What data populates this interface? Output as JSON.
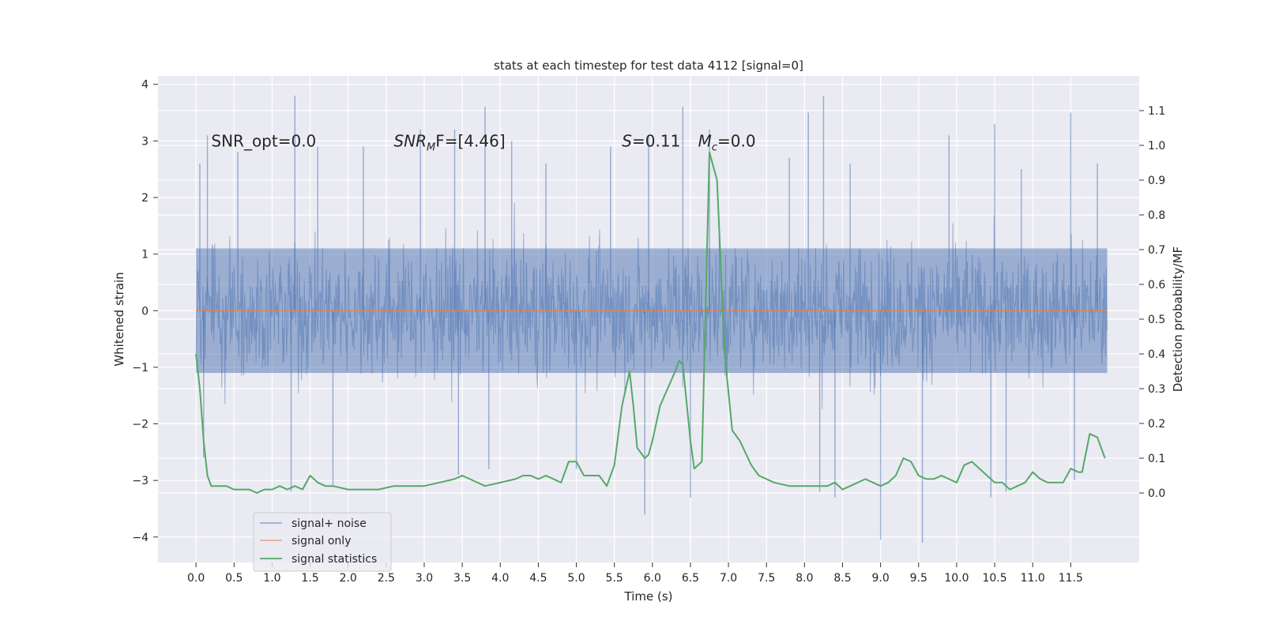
{
  "chart_data": {
    "type": "line",
    "title": "stats at each timestep for test data 4112 [signal=0]",
    "xlabel": "Time (s)",
    "ylabel": "Whitened strain",
    "ylabel_right": "Detection probability/MF",
    "xlim": [
      -0.5,
      12.4
    ],
    "ylim": [
      -4.45,
      4.15
    ],
    "ylim_right": [
      -0.2,
      1.2
    ],
    "x_ticks": [
      0.0,
      0.5,
      1.0,
      1.5,
      2.0,
      2.5,
      3.0,
      3.5,
      4.0,
      4.5,
      5.0,
      5.5,
      6.0,
      6.5,
      7.0,
      7.5,
      8.0,
      8.5,
      9.0,
      9.5,
      10.0,
      10.5,
      11.0,
      11.5
    ],
    "x_tick_labels": [
      "0.0",
      "0.5",
      "1.0",
      "1.5",
      "2.0",
      "2.5",
      "3.0",
      "3.5",
      "4.0",
      "4.5",
      "5.0",
      "5.5",
      "6.0",
      "6.5",
      "7.0",
      "7.5",
      "8.0",
      "8.5",
      "9.0",
      "9.5",
      "10.0",
      "10.5",
      "11.0",
      "11.5"
    ],
    "y_ticks": [
      -4,
      -3,
      -2,
      -1,
      0,
      1,
      2,
      3,
      4
    ],
    "y_tick_labels": [
      "−4",
      "−3",
      "−2",
      "−1",
      "0",
      "1",
      "2",
      "3",
      "4"
    ],
    "y_right_ticks": [
      0.0,
      0.1,
      0.2,
      0.3,
      0.4,
      0.5,
      0.6,
      0.7,
      0.8,
      0.9,
      1.0,
      1.1
    ],
    "y_right_tick_labels": [
      "0.0",
      "0.1",
      "0.2",
      "0.3",
      "0.4",
      "0.5",
      "0.6",
      "0.7",
      "0.8",
      "0.9",
      "1.0",
      "1.1"
    ],
    "grid": true,
    "legend_position": "lower-left",
    "annotations": [
      {
        "text": "SNR_opt=0.0",
        "x": 0.2,
        "y": 3.0
      },
      {
        "text": "SNR",
        "sub": "M",
        "tail": "F=[4.46]",
        "x": 2.6,
        "y": 3.0,
        "italic_main": true
      },
      {
        "text": "S",
        "tail": "=0.11",
        "x": 5.6,
        "y": 3.0,
        "italic_main": true
      },
      {
        "text": "M",
        "sub": "c",
        "tail": "=0.0",
        "x": 6.6,
        "y": 3.0,
        "italic_main": true
      }
    ],
    "series": [
      {
        "name": "signal+ noise",
        "color": "#4c72b0",
        "opacity": 0.5,
        "x_range": [
          0.0,
          11.98
        ],
        "envelope_core": [
          -1.1,
          1.1
        ],
        "spikes_up": [
          {
            "x": 0.05,
            "y": 2.6
          },
          {
            "x": 0.15,
            "y": 3.1
          },
          {
            "x": 0.55,
            "y": 2.8
          },
          {
            "x": 1.3,
            "y": 3.8
          },
          {
            "x": 1.6,
            "y": 2.9
          },
          {
            "x": 2.2,
            "y": 2.9
          },
          {
            "x": 2.95,
            "y": 3.2
          },
          {
            "x": 3.4,
            "y": 3.2
          },
          {
            "x": 3.8,
            "y": 3.6
          },
          {
            "x": 4.15,
            "y": 3.0
          },
          {
            "x": 4.6,
            "y": 2.6
          },
          {
            "x": 5.45,
            "y": 2.9
          },
          {
            "x": 5.95,
            "y": 3.1
          },
          {
            "x": 6.4,
            "y": 3.6
          },
          {
            "x": 6.75,
            "y": 3.2
          },
          {
            "x": 7.8,
            "y": 2.7
          },
          {
            "x": 8.05,
            "y": 3.5
          },
          {
            "x": 8.25,
            "y": 3.8
          },
          {
            "x": 8.6,
            "y": 2.6
          },
          {
            "x": 9.9,
            "y": 3.1
          },
          {
            "x": 10.5,
            "y": 3.3
          },
          {
            "x": 10.85,
            "y": 2.5
          },
          {
            "x": 11.5,
            "y": 3.5
          },
          {
            "x": 11.85,
            "y": 2.6
          }
        ],
        "spikes_down": [
          {
            "x": 0.1,
            "y": -2.6
          },
          {
            "x": 1.25,
            "y": -3.2
          },
          {
            "x": 1.8,
            "y": -3.1
          },
          {
            "x": 3.45,
            "y": -2.9
          },
          {
            "x": 3.85,
            "y": -2.8
          },
          {
            "x": 5.0,
            "y": -2.8
          },
          {
            "x": 5.9,
            "y": -3.6
          },
          {
            "x": 6.5,
            "y": -3.3
          },
          {
            "x": 8.2,
            "y": -3.2
          },
          {
            "x": 8.4,
            "y": -3.3
          },
          {
            "x": 9.0,
            "y": -4.05
          },
          {
            "x": 9.55,
            "y": -4.1
          },
          {
            "x": 10.45,
            "y": -3.3
          },
          {
            "x": 10.65,
            "y": -3.2
          },
          {
            "x": 11.55,
            "y": -3.0
          }
        ]
      },
      {
        "name": "signal only",
        "color": "#dd8452",
        "x": [
          0.0,
          11.98
        ],
        "y": [
          0.0,
          0.0
        ]
      },
      {
        "name": "signal statistics",
        "color": "#55a868",
        "axis": "right",
        "x": [
          0.0,
          0.05,
          0.1,
          0.15,
          0.2,
          0.3,
          0.4,
          0.5,
          0.6,
          0.7,
          0.8,
          0.9,
          1.0,
          1.1,
          1.2,
          1.3,
          1.4,
          1.5,
          1.6,
          1.7,
          1.8,
          2.0,
          2.2,
          2.4,
          2.6,
          2.8,
          3.0,
          3.2,
          3.4,
          3.5,
          3.6,
          3.8,
          4.0,
          4.2,
          4.3,
          4.4,
          4.5,
          4.6,
          4.8,
          4.9,
          5.0,
          5.1,
          5.2,
          5.3,
          5.4,
          5.5,
          5.6,
          5.7,
          5.75,
          5.8,
          5.9,
          5.95,
          6.0,
          6.1,
          6.2,
          6.3,
          6.35,
          6.4,
          6.5,
          6.55,
          6.65,
          6.75,
          6.85,
          6.95,
          7.05,
          7.15,
          7.3,
          7.4,
          7.6,
          7.8,
          8.0,
          8.2,
          8.3,
          8.4,
          8.5,
          8.6,
          8.7,
          8.8,
          8.9,
          9.0,
          9.1,
          9.2,
          9.3,
          9.4,
          9.5,
          9.6,
          9.7,
          9.8,
          9.9,
          10.0,
          10.1,
          10.2,
          10.3,
          10.4,
          10.5,
          10.6,
          10.7,
          10.8,
          10.9,
          11.0,
          11.1,
          11.2,
          11.3,
          11.4,
          11.5,
          11.6,
          11.65,
          11.75,
          11.85,
          11.95
        ],
        "y": [
          0.4,
          0.3,
          0.15,
          0.05,
          0.02,
          0.02,
          0.02,
          0.01,
          0.01,
          0.01,
          0.0,
          0.01,
          0.01,
          0.02,
          0.01,
          0.02,
          0.01,
          0.05,
          0.03,
          0.02,
          0.02,
          0.01,
          0.01,
          0.01,
          0.02,
          0.02,
          0.02,
          0.03,
          0.04,
          0.05,
          0.04,
          0.02,
          0.03,
          0.04,
          0.05,
          0.05,
          0.04,
          0.05,
          0.03,
          0.09,
          0.09,
          0.05,
          0.05,
          0.05,
          0.02,
          0.08,
          0.25,
          0.35,
          0.25,
          0.13,
          0.1,
          0.11,
          0.15,
          0.25,
          0.3,
          0.35,
          0.38,
          0.37,
          0.15,
          0.07,
          0.09,
          0.98,
          0.9,
          0.4,
          0.18,
          0.15,
          0.08,
          0.05,
          0.03,
          0.02,
          0.02,
          0.02,
          0.02,
          0.03,
          0.01,
          0.02,
          0.03,
          0.04,
          0.03,
          0.02,
          0.03,
          0.05,
          0.1,
          0.09,
          0.05,
          0.04,
          0.04,
          0.05,
          0.04,
          0.03,
          0.08,
          0.09,
          0.07,
          0.05,
          0.03,
          0.03,
          0.01,
          0.02,
          0.03,
          0.06,
          0.04,
          0.03,
          0.03,
          0.03,
          0.07,
          0.06,
          0.06,
          0.17,
          0.16,
          0.1
        ]
      }
    ]
  }
}
